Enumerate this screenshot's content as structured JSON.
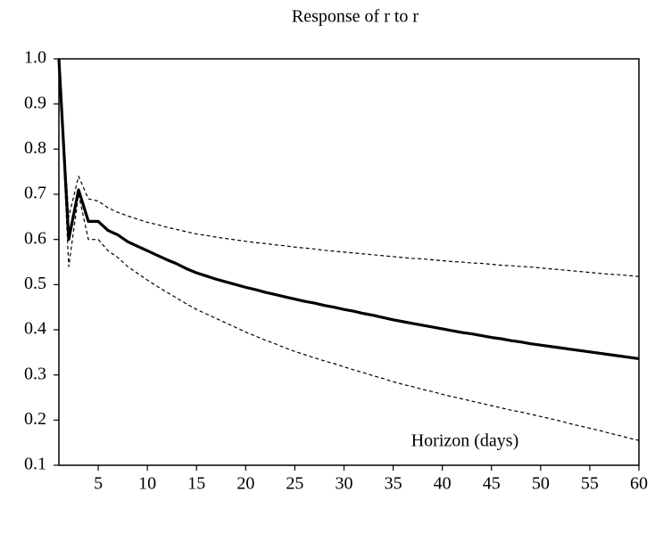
{
  "chart_data": {
    "type": "line",
    "title": "Response of r to r",
    "annotation": "Horizon (days)",
    "x": [
      1,
      2,
      3,
      4,
      5,
      6,
      7,
      8,
      9,
      10,
      11,
      12,
      13,
      14,
      15,
      16,
      17,
      18,
      19,
      20,
      21,
      22,
      23,
      24,
      25,
      26,
      27,
      28,
      29,
      30,
      31,
      32,
      33,
      34,
      35,
      36,
      37,
      38,
      39,
      40,
      41,
      42,
      43,
      44,
      45,
      46,
      47,
      48,
      49,
      50,
      51,
      52,
      53,
      54,
      55,
      56,
      57,
      58,
      59,
      60
    ],
    "series": [
      {
        "color": "#000000",
        "dash": false,
        "width": 3.2,
        "values": [
          1.0,
          0.6,
          0.71,
          0.64,
          0.64,
          0.62,
          0.61,
          0.595,
          0.585,
          0.575,
          0.565,
          0.555,
          0.546,
          0.535,
          0.526,
          0.519,
          0.512,
          0.506,
          0.5,
          0.494,
          0.489,
          0.483,
          0.478,
          0.473,
          0.468,
          0.463,
          0.459,
          0.454,
          0.45,
          0.445,
          0.441,
          0.436,
          0.432,
          0.427,
          0.422,
          0.418,
          0.414,
          0.41,
          0.406,
          0.402,
          0.398,
          0.394,
          0.391,
          0.387,
          0.383,
          0.38,
          0.376,
          0.373,
          0.369,
          0.366,
          0.363,
          0.36,
          0.357,
          0.354,
          0.351,
          0.348,
          0.345,
          0.342,
          0.339,
          0.336
        ]
      },
      {
        "color": "#000000",
        "dash": true,
        "width": 1.2,
        "values": [
          1.0,
          0.65,
          0.74,
          0.69,
          0.685,
          0.67,
          0.66,
          0.652,
          0.645,
          0.638,
          0.633,
          0.627,
          0.622,
          0.617,
          0.612,
          0.609,
          0.605,
          0.602,
          0.599,
          0.596,
          0.593,
          0.591,
          0.588,
          0.586,
          0.583,
          0.581,
          0.579,
          0.576,
          0.574,
          0.572,
          0.57,
          0.568,
          0.566,
          0.564,
          0.562,
          0.56,
          0.558,
          0.557,
          0.555,
          0.553,
          0.551,
          0.55,
          0.548,
          0.547,
          0.545,
          0.543,
          0.542,
          0.54,
          0.539,
          0.537,
          0.535,
          0.533,
          0.531,
          0.529,
          0.527,
          0.525,
          0.523,
          0.522,
          0.52,
          0.518
        ]
      },
      {
        "color": "#000000",
        "dash": true,
        "width": 1.2,
        "values": [
          1.0,
          0.54,
          0.7,
          0.6,
          0.6,
          0.575,
          0.56,
          0.54,
          0.525,
          0.51,
          0.496,
          0.483,
          0.47,
          0.457,
          0.445,
          0.435,
          0.425,
          0.415,
          0.405,
          0.395,
          0.386,
          0.377,
          0.369,
          0.36,
          0.352,
          0.345,
          0.338,
          0.331,
          0.325,
          0.318,
          0.311,
          0.305,
          0.298,
          0.292,
          0.285,
          0.279,
          0.274,
          0.268,
          0.263,
          0.257,
          0.252,
          0.247,
          0.242,
          0.237,
          0.232,
          0.227,
          0.222,
          0.218,
          0.213,
          0.208,
          0.203,
          0.198,
          0.192,
          0.187,
          0.182,
          0.177,
          0.171,
          0.166,
          0.16,
          0.155
        ]
      }
    ],
    "xlim": [
      1,
      60
    ],
    "xticks": [
      5,
      10,
      15,
      20,
      25,
      30,
      35,
      40,
      45,
      50,
      55,
      60
    ],
    "ylim": [
      0.1,
      1.0
    ],
    "yticks": [
      {
        "value": 1.0,
        "label": "1.0"
      },
      0.9,
      0.8,
      0.7,
      0.6,
      0.5,
      0.4,
      0.3,
      0.2,
      0.1
    ],
    "grid": false
  }
}
